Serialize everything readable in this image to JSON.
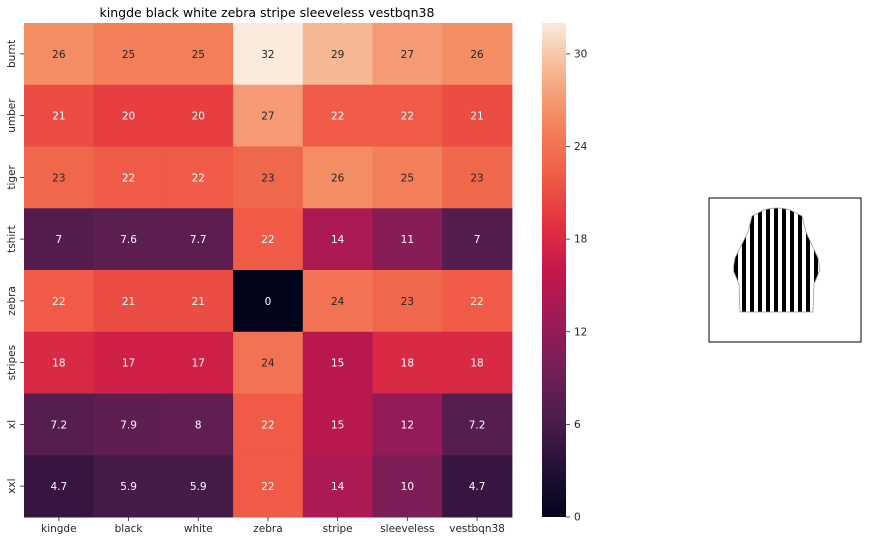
{
  "chart_data": {
    "type": "heatmap",
    "title": "kingde black white zebra stripe sleeveless vestbqn38",
    "xlabel": "",
    "ylabel": "",
    "x_categories": [
      "kingde",
      "black",
      "white",
      "zebra",
      "stripe",
      "sleeveless",
      "vestbqn38"
    ],
    "y_categories": [
      "burnt",
      "umber",
      "tiger",
      "tshirt",
      "zebra",
      "stripes",
      "xl",
      "xxl"
    ],
    "values": [
      [
        26,
        25,
        25,
        32,
        29,
        27,
        26
      ],
      [
        21,
        20,
        20,
        27,
        22,
        22,
        21
      ],
      [
        23,
        22,
        22,
        23,
        26,
        25,
        23
      ],
      [
        7,
        7.6,
        7.7,
        22,
        14,
        11,
        7
      ],
      [
        22,
        21,
        21,
        0,
        24,
        23,
        22
      ],
      [
        18,
        17,
        17,
        24,
        15,
        18,
        18
      ],
      [
        7.2,
        7.9,
        8,
        22,
        15,
        12,
        7.2
      ],
      [
        4.7,
        5.9,
        5.9,
        22,
        14,
        10,
        4.7
      ]
    ],
    "annotations": [
      [
        "26",
        "25",
        "25",
        "32",
        "29",
        "27",
        "26"
      ],
      [
        "21",
        "20",
        "20",
        "27",
        "22",
        "22",
        "21"
      ],
      [
        "23",
        "22",
        "22",
        "23",
        "26",
        "25",
        "23"
      ],
      [
        "7",
        "7.6",
        "7.7",
        "22",
        "14",
        "11",
        "7"
      ],
      [
        "22",
        "21",
        "21",
        "0",
        "24",
        "23",
        "22"
      ],
      [
        "18",
        "17",
        "17",
        "24",
        "15",
        "18",
        "18"
      ],
      [
        "7.2",
        "7.9",
        "8",
        "22",
        "15",
        "12",
        "7.2"
      ],
      [
        "4.7",
        "5.9",
        "5.9",
        "22",
        "14",
        "10",
        "4.7"
      ]
    ],
    "vmin": 0,
    "vmax": 32,
    "colormap": "rocket",
    "colorbar": {
      "ticks": [
        0,
        6,
        12,
        18,
        24,
        30
      ],
      "tick_labels": [
        "0",
        "6",
        "12",
        "18",
        "24",
        "30"
      ],
      "position": "right"
    },
    "grid": false,
    "legend": "none"
  },
  "product_image": {
    "icon": "zebra-stripe-sleeveless-vest-icon",
    "description_colors": [
      "#000000",
      "#ffffff"
    ]
  },
  "colors": {
    "text": "#262626",
    "light_annotation": "#ffffff",
    "dark_annotation": "#262626",
    "frame": "#000000"
  }
}
